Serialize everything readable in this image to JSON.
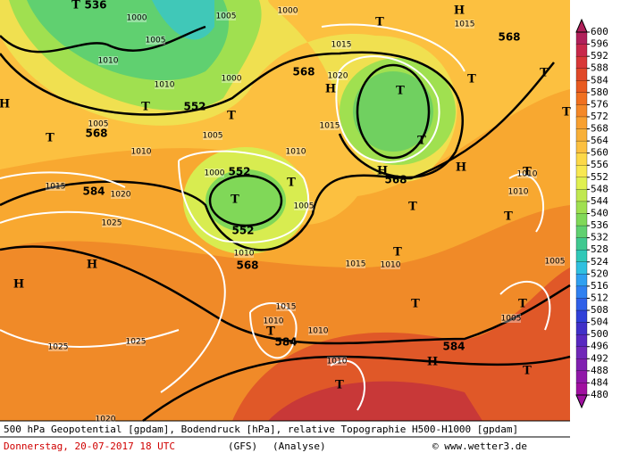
{
  "map_labels": [
    "536",
    "552",
    "568",
    "568",
    "568",
    "584",
    "552",
    "552",
    "568",
    "568",
    "584",
    "584",
    "1000",
    "1005",
    "1005",
    "1000",
    "1010",
    "1010",
    "1000",
    "1005",
    "1005",
    "1010",
    "1015",
    "1020",
    "1015",
    "1010",
    "1000",
    "1005",
    "1015",
    "1020",
    "1025",
    "1010",
    "1015",
    "1010",
    "1015",
    "1010",
    "1010",
    "1025",
    "1025",
    "1010",
    "1020",
    "1015",
    "1010",
    "1010",
    "1005",
    "1005",
    "H",
    "H",
    "H",
    "H",
    "H",
    "H",
    "H",
    "H",
    "T",
    "T",
    "T",
    "T",
    "T",
    "T",
    "T",
    "T",
    "T",
    "T",
    "T",
    "T",
    "T",
    "T",
    "T",
    "T",
    "T",
    "T",
    "T",
    "T",
    "T"
  ],
  "colorbar": {
    "ticks": [
      600,
      596,
      592,
      588,
      584,
      580,
      576,
      572,
      568,
      564,
      560,
      556,
      552,
      548,
      544,
      540,
      536,
      532,
      528,
      524,
      520,
      516,
      512,
      508,
      504,
      500,
      496,
      492,
      488,
      484,
      480
    ],
    "colors": [
      "#b0205a",
      "#c8284a",
      "#d83838",
      "#e04828",
      "#e85a20",
      "#f07020",
      "#f48828",
      "#f8a030",
      "#f8b038",
      "#fcc040",
      "#fcd848",
      "#f8e850",
      "#e0f050",
      "#c0e850",
      "#a0e050",
      "#80d858",
      "#60d070",
      "#40c890",
      "#30c8b8",
      "#30c0e0",
      "#30a0f0",
      "#3080f0",
      "#3060e8",
      "#3040d8",
      "#4030c8",
      "#5828c0",
      "#7028b8",
      "#8020b0",
      "#9018a8",
      "#a010a0"
    ]
  },
  "footer": {
    "line1": "500 hPa Geopotential [gpdam], Bodendruck [hPa], relative Topographie H500-H1000 [gpdam]",
    "date": "Donnerstag, 20-07-2017  18 UTC",
    "model": "(GFS)",
    "run": "(Analyse)",
    "credit": "© www.wetter3.de"
  }
}
